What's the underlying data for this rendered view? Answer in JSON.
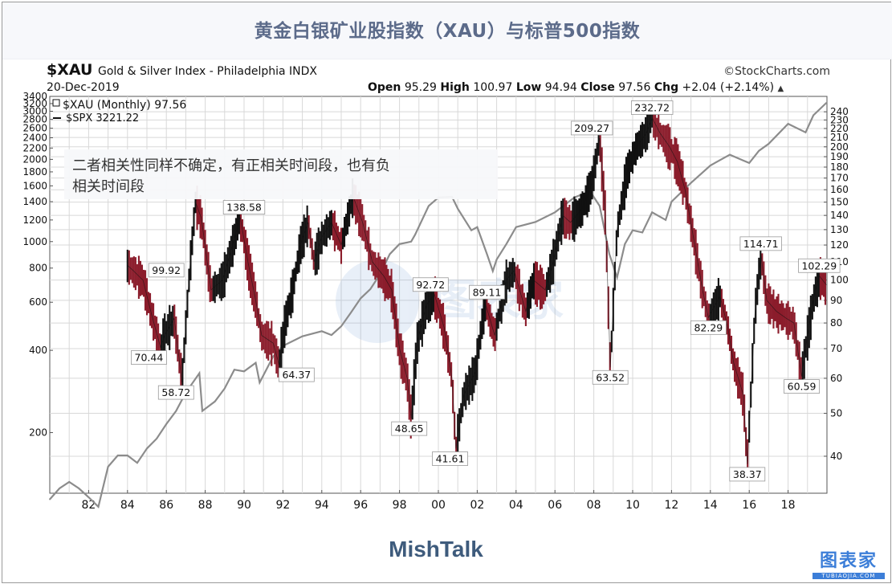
{
  "page_title": "黄金白银矿业股指数（XAU）与标普500指数",
  "header": {
    "ticker": "$XAU",
    "subtitle": "Gold & Silver Index - Philadelphia  INDX",
    "brand": "©StockCharts.com",
    "date": "20-Dec-2019",
    "ohlc": {
      "open_label": "Open",
      "open": "95.29",
      "high_label": "High",
      "high": "100.97",
      "low_label": "Low",
      "low": "94.94",
      "close_label": "Close",
      "close": "97.56",
      "chg_label": "Chg",
      "chg": "+2.04 (+2.14%)"
    }
  },
  "legend": {
    "xau": "$XAU (Monthly) 97.56",
    "spx": "$SPX 3221.22"
  },
  "annotation": "二者相关性同样不确定，有正相关时间段，也有负相关时间段",
  "footer": {
    "source": "MishTalk",
    "watermark": "图表家",
    "watermark_url": "TUBIAOJIA.COM"
  },
  "colors": {
    "title": "#5c6b8a",
    "xau_up": "#111111",
    "xau_down": "#8b1c2b",
    "spx": "#8c8c8c",
    "grid": "#d8d8d8"
  },
  "chart_data": {
    "type": "line",
    "x_axis": {
      "range": [
        1980,
        2020
      ],
      "tick_labels": [
        "82",
        "84",
        "86",
        "88",
        "90",
        "92",
        "94",
        "96",
        "98",
        "00",
        "02",
        "04",
        "06",
        "08",
        "10",
        "12",
        "14",
        "16",
        "18"
      ]
    },
    "left_axis": {
      "scale": "log",
      "range": [
        120,
        3400
      ],
      "tick_labels": [
        "3400",
        "3200",
        "3000",
        "2800",
        "2600",
        "2400",
        "2200",
        "2000",
        "1800",
        "1600",
        "1400",
        "1200",
        "1000",
        "800",
        "600",
        "400",
        "200"
      ]
    },
    "right_axis": {
      "scale": "log",
      "range": [
        33,
        260
      ],
      "tick_labels": [
        "240",
        "230",
        "220",
        "210",
        "200",
        "190",
        "180",
        "170",
        "160",
        "150",
        "140",
        "130",
        "120",
        "110",
        "100",
        "90",
        "80",
        "70",
        "60",
        "50",
        "40"
      ]
    },
    "series": [
      {
        "name": "$XAU (Monthly)",
        "axis": "right",
        "x": [
          1984.0,
          1984.3,
          1984.8,
          1985.2,
          1985.7,
          1985.9,
          1986.4,
          1986.8,
          1987.2,
          1987.5,
          1987.8,
          1988.3,
          1988.9,
          1989.3,
          1989.8,
          1990.2,
          1990.6,
          1990.9,
          1991.5,
          1991.8,
          1992.1,
          1992.5,
          1992.9,
          1993.3,
          1993.6,
          1994.0,
          1994.5,
          1995.0,
          1995.6,
          1996.1,
          1996.6,
          1997.2,
          1997.6,
          1998.0,
          1998.4,
          1998.6,
          1998.9,
          1999.4,
          1999.8,
          2000.3,
          2000.7,
          2000.9,
          2001.3,
          2001.9,
          2002.4,
          2002.9,
          2003.5,
          2003.9,
          2004.5,
          2004.9,
          2005.5,
          2005.9,
          2006.4,
          2006.8,
          2007.4,
          2007.9,
          2008.3,
          2008.6,
          2008.85,
          2009.2,
          2009.7,
          2010.2,
          2010.7,
          2011.0,
          2011.4,
          2011.9,
          2012.3,
          2012.7,
          2013.2,
          2013.6,
          2013.9,
          2014.5,
          2014.9,
          2015.2,
          2015.7,
          2015.9,
          2016.3,
          2016.6,
          2016.9,
          2017.4,
          2017.9,
          2018.3,
          2018.7,
          2018.9,
          2019.3,
          2019.6,
          2019.97
        ],
        "values": [
          108,
          105,
          99.92,
          85,
          70.44,
          75,
          82,
          58.72,
          105,
          150,
          138,
          95,
          100,
          115,
          138.58,
          110,
          90,
          75,
          72,
          64.37,
          80,
          95,
          120,
          135,
          110,
          125,
          135,
          120,
          155,
          135,
          110,
          102,
          95,
          70,
          60,
          48.65,
          72,
          88,
          92.72,
          78,
          60,
          41.61,
          55,
          62,
          89.11,
          75,
          100,
          105,
          85,
          100,
          95,
          110,
          140,
          135,
          145,
          165,
          209.27,
          140,
          63.52,
          130,
          175,
          200,
          215,
          232.72,
          215,
          200,
          185,
          160,
          120,
          95,
          82.29,
          92,
          78,
          65,
          55,
          38.37,
          85,
          114.71,
          90,
          85,
          82,
          80,
          60.59,
          70,
          90,
          102.29,
          97.56
        ]
      },
      {
        "name": "$SPX",
        "axis": "left",
        "x": [
          1980.0,
          1980.5,
          1981.0,
          1981.5,
          1982.0,
          1982.5,
          1983.0,
          1983.5,
          1984.0,
          1984.5,
          1985.0,
          1985.5,
          1986.0,
          1986.5,
          1987.0,
          1987.7,
          1987.85,
          1988.5,
          1989.0,
          1989.5,
          1990.0,
          1990.6,
          1990.8,
          1991.5,
          1992.0,
          1993.0,
          1994.0,
          1994.5,
          1995.0,
          1995.5,
          1996.0,
          1996.5,
          1997.0,
          1997.5,
          1998.0,
          1998.6,
          1998.8,
          1999.5,
          2000.0,
          2000.7,
          2001.0,
          2001.7,
          2002.0,
          2002.5,
          2002.8,
          2003.0,
          2003.5,
          2004.0,
          2005.0,
          2006.0,
          2007.0,
          2007.8,
          2008.3,
          2008.8,
          2009.2,
          2009.6,
          2010.0,
          2010.5,
          2011.0,
          2011.7,
          2012.0,
          2013.0,
          2014.0,
          2015.0,
          2015.7,
          2016.0,
          2016.5,
          2017.0,
          2018.0,
          2018.9,
          2019.3,
          2019.97
        ],
        "values": [
          114,
          125,
          132,
          125,
          116,
          107,
          150,
          165,
          165,
          155,
          175,
          190,
          215,
          240,
          280,
          330,
          240,
          260,
          290,
          340,
          335,
          360,
          305,
          380,
          415,
          450,
          470,
          455,
          490,
          550,
          620,
          670,
          760,
          900,
          980,
          1000,
          1060,
          1350,
          1450,
          1460,
          1320,
          1100,
          1130,
          900,
          780,
          860,
          980,
          1130,
          1180,
          1280,
          1450,
          1530,
          1350,
          900,
          740,
          980,
          1100,
          1080,
          1280,
          1200,
          1400,
          1640,
          1900,
          2080,
          1980,
          1940,
          2150,
          2280,
          2700,
          2510,
          2900,
          3221.22
        ]
      }
    ],
    "data_labels": [
      {
        "text": "99.92",
        "x": 1986.0,
        "value": 99.92,
        "position": "above"
      },
      {
        "text": "70.44",
        "x": 1985.1,
        "value": 70.44,
        "position": "below"
      },
      {
        "text": "58.72",
        "x": 1986.5,
        "value": 58.72,
        "position": "below"
      },
      {
        "text": "138.58",
        "x": 1990.0,
        "value": 138.58,
        "position": "above"
      },
      {
        "text": "64.37",
        "x": 1992.7,
        "value": 64.37,
        "position": "below"
      },
      {
        "text": "48.65",
        "x": 1998.5,
        "value": 48.65,
        "position": "below"
      },
      {
        "text": "92.72",
        "x": 1999.6,
        "value": 92.72,
        "position": "above"
      },
      {
        "text": "41.61",
        "x": 2000.6,
        "value": 41.61,
        "position": "below"
      },
      {
        "text": "89.11",
        "x": 2002.5,
        "value": 89.11,
        "position": "above"
      },
      {
        "text": "209.27",
        "x": 2007.9,
        "value": 209.27,
        "position": "above"
      },
      {
        "text": "63.52",
        "x": 2008.85,
        "value": 63.52,
        "position": "below"
      },
      {
        "text": "232.72",
        "x": 2011.0,
        "value": 232.72,
        "position": "above"
      },
      {
        "text": "82.29",
        "x": 2013.9,
        "value": 82.29,
        "position": "below"
      },
      {
        "text": "114.71",
        "x": 2016.6,
        "value": 114.71,
        "position": "above"
      },
      {
        "text": "38.37",
        "x": 2015.9,
        "value": 38.37,
        "position": "below"
      },
      {
        "text": "60.59",
        "x": 2018.7,
        "value": 60.59,
        "position": "below"
      },
      {
        "text": "102.29",
        "x": 2019.6,
        "value": 102.29,
        "position": "above"
      }
    ]
  }
}
